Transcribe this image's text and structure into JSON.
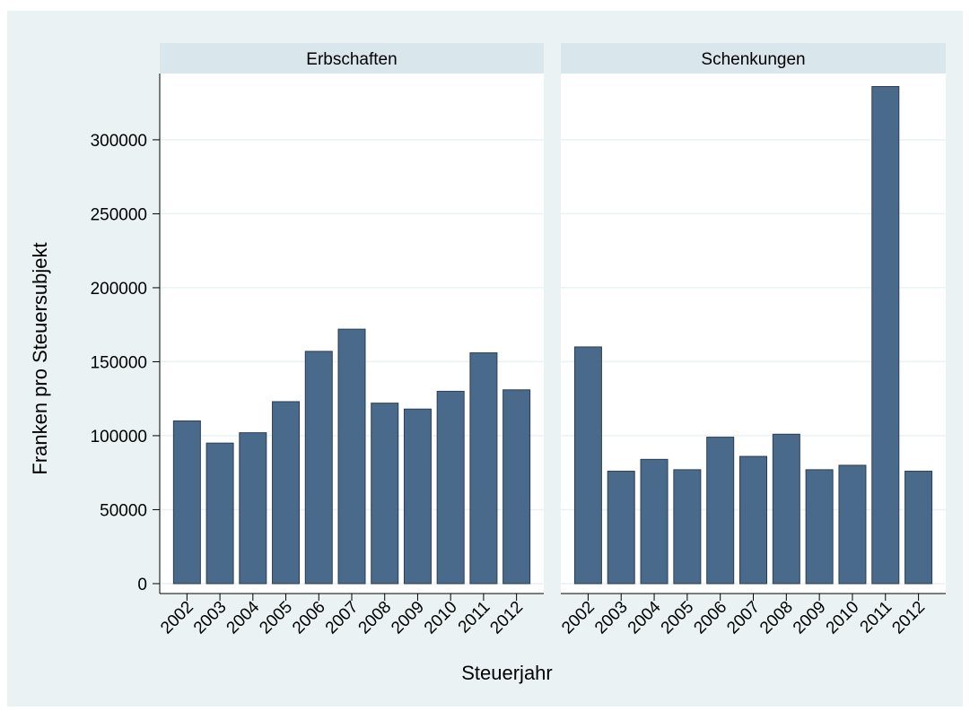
{
  "chart_data": [
    {
      "type": "bar",
      "title": "Erbschaften",
      "y_label": "Franken pro Steuersubjekt",
      "x_label": "Steuerjahr",
      "categories": [
        "2002",
        "2003",
        "2004",
        "2005",
        "2006",
        "2007",
        "2008",
        "2009",
        "2010",
        "2011",
        "2012"
      ],
      "values": [
        110000,
        95000,
        102000,
        123000,
        157000,
        172000,
        122000,
        118000,
        130000,
        156000,
        131000
      ],
      "color": "#4a6a8c",
      "ylim": [
        -6700,
        344800
      ],
      "yticks": [
        0,
        50000,
        100000,
        150000,
        200000,
        250000,
        300000
      ],
      "grid": true
    },
    {
      "type": "bar",
      "title": "Schenkungen",
      "categories": [
        "2002",
        "2003",
        "2004",
        "2005",
        "2006",
        "2007",
        "2008",
        "2009",
        "2010",
        "2011",
        "2012"
      ],
      "values": [
        160000,
        76000,
        84000,
        77000,
        99000,
        86000,
        101000,
        77000,
        80000,
        336000,
        76000
      ],
      "color": "#4a6a8c",
      "ylim": [
        -6700,
        344800
      ],
      "yticks": [
        0,
        50000,
        100000,
        150000,
        200000,
        250000,
        300000
      ],
      "grid": true
    }
  ]
}
